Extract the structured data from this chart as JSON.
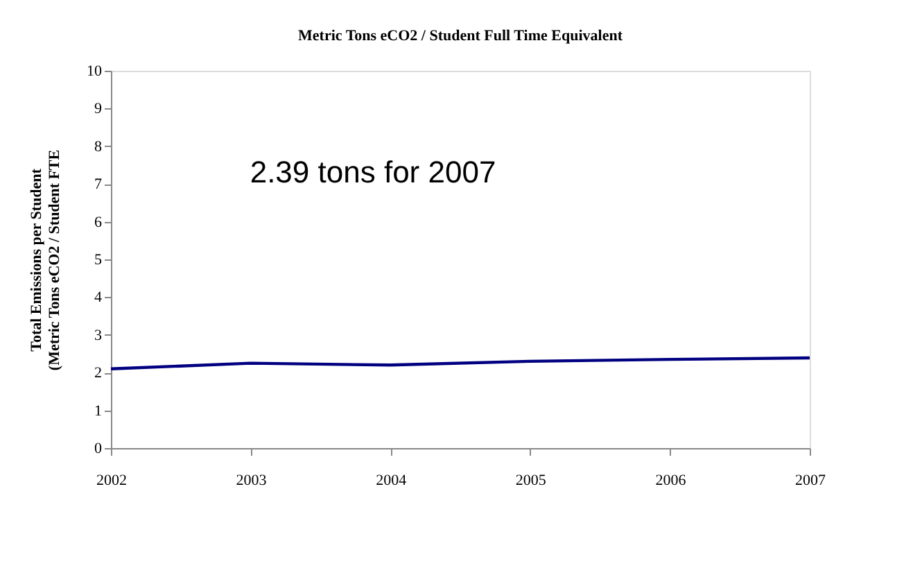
{
  "chart_data": {
    "type": "line",
    "title": "Metric Tons eCO2 / Student Full Time Equivalent",
    "ylabel": "Total Emissions per Student\n(Metric Tons eCO2 / Student FTE",
    "x": [
      2002,
      2003,
      2004,
      2005,
      2006,
      2007
    ],
    "series": [
      {
        "color": "#000080",
        "values": [
          2.1,
          2.25,
          2.2,
          2.3,
          2.35,
          2.39
        ]
      }
    ],
    "xlim": [
      2002,
      2007
    ],
    "xticks": [
      2002,
      2003,
      2004,
      2005,
      2006,
      2007
    ],
    "ylim": [
      0,
      10
    ],
    "yticks": [
      0,
      1,
      2,
      3,
      4,
      5,
      6,
      7,
      8,
      9,
      10
    ],
    "annotations": [
      "2.39 tons for 2007"
    ],
    "grid": false,
    "marker": "none",
    "line_style": "solid"
  }
}
